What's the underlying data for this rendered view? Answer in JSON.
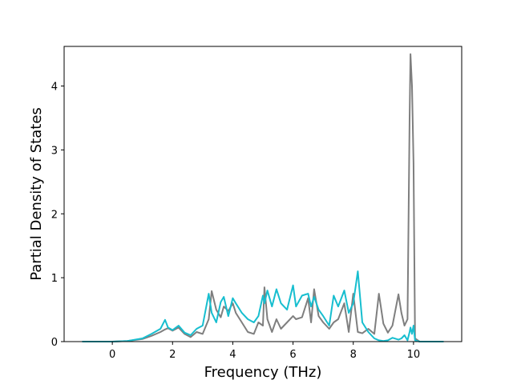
{
  "chart_data": {
    "type": "line",
    "title": "",
    "xlabel": "Frequency (THz)",
    "ylabel": "Partial Density of States",
    "xlim": [
      -1.6,
      11.6
    ],
    "ylim": [
      0,
      4.62
    ],
    "xticks": [
      0,
      2,
      4,
      6,
      8,
      10
    ],
    "yticks": [
      0,
      1,
      2,
      3,
      4
    ],
    "grid": false,
    "legend": "none",
    "series": [
      {
        "color": "#7f7f7f",
        "x": [
          -1.0,
          0.0,
          0.5,
          1.0,
          1.3,
          1.6,
          1.75,
          1.85,
          2.0,
          2.2,
          2.4,
          2.6,
          2.8,
          3.0,
          3.2,
          3.3,
          3.45,
          3.6,
          3.7,
          3.85,
          4.0,
          4.1,
          4.3,
          4.5,
          4.7,
          4.85,
          5.0,
          5.05,
          5.15,
          5.3,
          5.45,
          5.6,
          5.8,
          6.0,
          6.1,
          6.3,
          6.5,
          6.6,
          6.7,
          6.85,
          7.0,
          7.2,
          7.35,
          7.5,
          7.7,
          7.85,
          8.0,
          8.15,
          8.3,
          8.5,
          8.7,
          8.85,
          9.0,
          9.15,
          9.3,
          9.5,
          9.6,
          9.7,
          9.8,
          9.87,
          9.9,
          9.95,
          10.0,
          10.05,
          10.2,
          11.0
        ],
        "y": [
          0.0,
          0.0,
          0.01,
          0.04,
          0.09,
          0.15,
          0.19,
          0.21,
          0.17,
          0.22,
          0.12,
          0.07,
          0.15,
          0.12,
          0.35,
          0.79,
          0.5,
          0.38,
          0.55,
          0.48,
          0.6,
          0.45,
          0.3,
          0.15,
          0.12,
          0.3,
          0.25,
          0.85,
          0.35,
          0.15,
          0.35,
          0.2,
          0.3,
          0.4,
          0.35,
          0.38,
          0.68,
          0.3,
          0.82,
          0.4,
          0.3,
          0.2,
          0.3,
          0.35,
          0.6,
          0.15,
          0.75,
          0.15,
          0.13,
          0.2,
          0.12,
          0.75,
          0.28,
          0.14,
          0.25,
          0.74,
          0.45,
          0.25,
          0.35,
          3.5,
          4.5,
          4.0,
          2.8,
          0.05,
          0.0,
          0.0
        ]
      },
      {
        "color": "#17becf",
        "x": [
          -1.0,
          0.0,
          0.5,
          1.0,
          1.3,
          1.6,
          1.75,
          1.85,
          2.0,
          2.2,
          2.4,
          2.6,
          2.8,
          3.0,
          3.2,
          3.3,
          3.45,
          3.6,
          3.7,
          3.85,
          4.0,
          4.1,
          4.3,
          4.5,
          4.7,
          4.85,
          5.0,
          5.05,
          5.15,
          5.3,
          5.45,
          5.6,
          5.8,
          6.0,
          6.1,
          6.3,
          6.5,
          6.6,
          6.7,
          6.85,
          7.0,
          7.2,
          7.35,
          7.5,
          7.7,
          7.85,
          8.0,
          8.15,
          8.3,
          8.5,
          8.7,
          8.85,
          9.0,
          9.15,
          9.3,
          9.5,
          9.6,
          9.7,
          9.8,
          9.87,
          9.9,
          9.95,
          10.0,
          10.05,
          10.2,
          11.0
        ],
        "y": [
          0.0,
          0.0,
          0.01,
          0.05,
          0.12,
          0.2,
          0.34,
          0.22,
          0.18,
          0.25,
          0.14,
          0.1,
          0.2,
          0.25,
          0.75,
          0.45,
          0.3,
          0.62,
          0.7,
          0.4,
          0.68,
          0.6,
          0.45,
          0.35,
          0.3,
          0.4,
          0.72,
          0.6,
          0.8,
          0.55,
          0.82,
          0.6,
          0.5,
          0.88,
          0.55,
          0.72,
          0.75,
          0.55,
          0.7,
          0.5,
          0.4,
          0.25,
          0.72,
          0.55,
          0.8,
          0.45,
          0.6,
          1.1,
          0.3,
          0.15,
          0.05,
          0.02,
          0.01,
          0.02,
          0.06,
          0.03,
          0.05,
          0.1,
          0.02,
          0.15,
          0.22,
          0.12,
          0.25,
          0.02,
          0.0,
          0.0
        ]
      }
    ]
  }
}
